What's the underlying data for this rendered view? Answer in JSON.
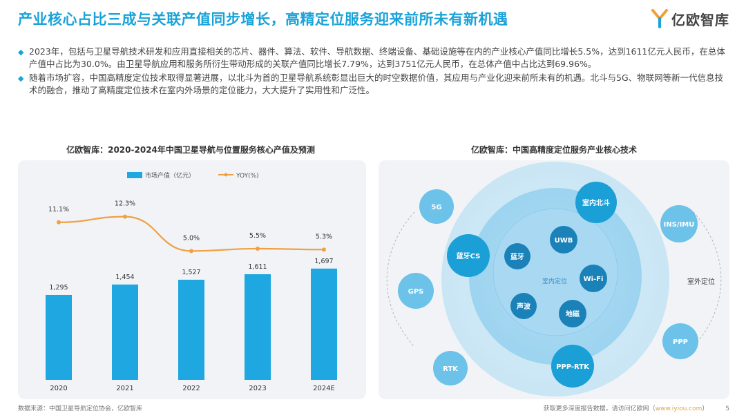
{
  "header": {
    "title": "产业核心占比三成与关联产值同步增长，高精定位服务迎来前所未有新机遇",
    "logo_text": "亿欧智库"
  },
  "bullets": [
    "2023年，包括与卫星导航技术研发和应用直接相关的芯片、器件、算法、软件、导航数据、终端设备、基础设施等在内的产业核心产值同比增长5.5%，达到1611亿元人民币，在总体产值中占比为30.0%。由卫星导航应用和服务所衍生带动形成的关联产值同比增长7.79%，达到3751亿元人民币，在总体产值中占比达到69.96%。",
    "随着市场扩容，中国高精度定位技术取得显著进展，以北斗为首的卫星导航系统彰显出巨大的时空数据价值，其应用与产业化迎来前所未有的机遇。北斗与5G、物联网等新一代信息技术的融合，推动了高精度定位技术在室内外场景的定位能力，大大提升了实用性和广泛性。"
  ],
  "left_panel": {
    "title": "亿欧智库：2020-2024年中国卫星导航与位置服务核心产值及预测"
  },
  "chart_data": {
    "type": "bar",
    "title": "亿欧智库：2020-2024年中国卫星导航与位置服务核心产值及预测",
    "categories": [
      "2020",
      "2021",
      "2022",
      "2023",
      "2024E"
    ],
    "series": [
      {
        "name": "市场产值（亿元）",
        "type": "bar",
        "values": [
          1295,
          1454,
          1527,
          1611,
          1697
        ],
        "labels": [
          "1,295",
          "1,454",
          "1,527",
          "1,611",
          "1,697"
        ]
      },
      {
        "name": "YOY(%)",
        "type": "line",
        "values": [
          11.1,
          12.3,
          5.0,
          5.5,
          5.3
        ],
        "labels": [
          "11.1%",
          "12.3%",
          "5.0%",
          "5.5%",
          "5.3%"
        ]
      }
    ],
    "bar_color": "#1ea7e1",
    "line_color": "#f0a040",
    "legend_position": "top-center"
  },
  "right_panel": {
    "title": "亿欧智库：中国高精度定位服务产业核心技术",
    "indoor_label": "室内定位",
    "outdoor_label": "室外定位",
    "indoor_nodes": [
      "UWB",
      "蓝牙",
      "Wi-Fi",
      "声波",
      "地磁"
    ],
    "mid_nodes": [
      "室内北斗",
      "蓝牙CS",
      "PPP-RTK"
    ],
    "outer_nodes": [
      "5G",
      "INS/IMU",
      "GPS",
      "PPP",
      "RTK"
    ]
  },
  "footer": {
    "source": "数据来源：中国卫星导航定位协会，亿欧智库",
    "note_prefix": "获取更多深度报告数据，请访问亿欧网（",
    "note_link": "www.iyiou.com",
    "note_suffix": "）",
    "page": "5"
  },
  "colors": {
    "accent": "#1aa3d9",
    "bar": "#1ea7e1",
    "line": "#f0a040",
    "node_dark": "#1a9fd6",
    "node_light": "#6cc2e8"
  }
}
